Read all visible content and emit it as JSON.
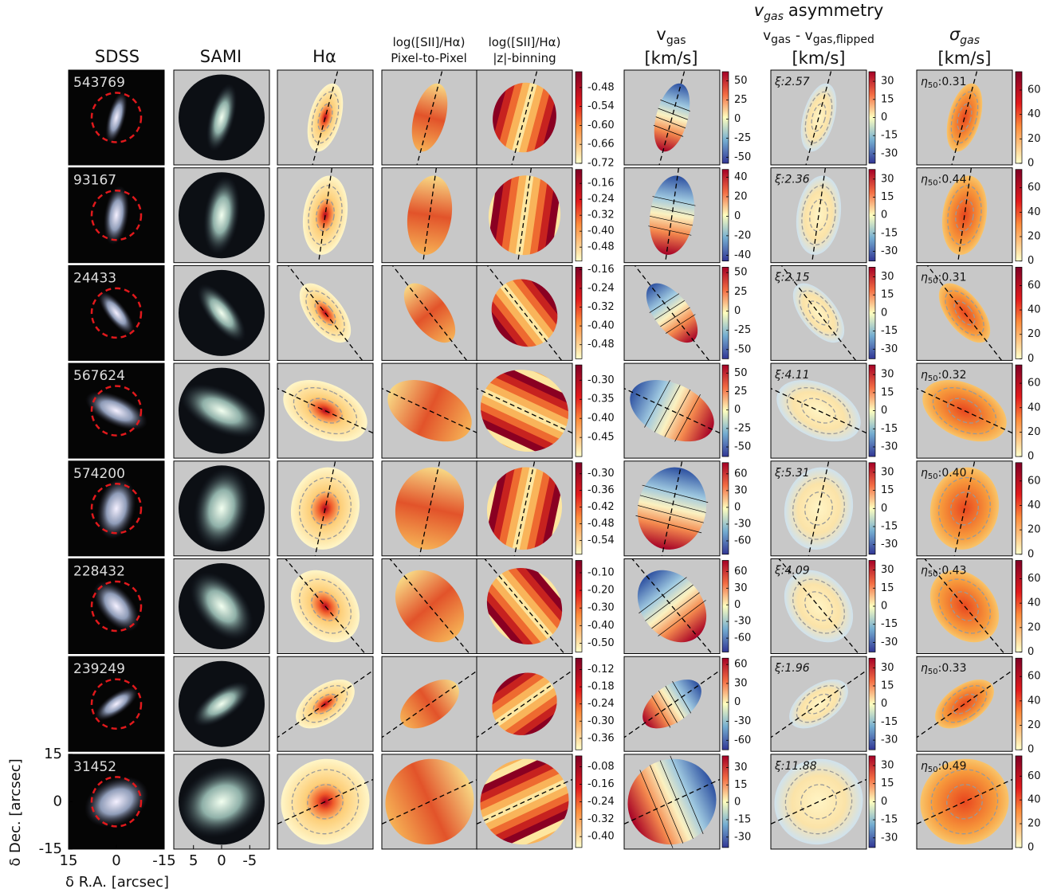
{
  "headers": {
    "sdss": "SDSS",
    "sami": "SAMI",
    "halpha": "Hα",
    "sii_pixel": [
      "log([SII]/Hα)",
      "Pixel-to-Pixel"
    ],
    "sii_binning": [
      "log([SII]/Hα)",
      "|z|-binning"
    ],
    "vgas": {
      "symbol": "v",
      "subscript": "gas",
      "unit": "[km/s]"
    },
    "asymmetry": {
      "symbol": "v",
      "subscript": "gas",
      "title": "asymmetry",
      "formula": [
        "v",
        "gas",
        "-",
        "v",
        "gas,flipped"
      ],
      "unit": "[km/s]"
    },
    "sigma": {
      "symbol": "σ",
      "subscript": "gas",
      "unit": "[km/s]"
    }
  },
  "rows": [
    {
      "id": "543769",
      "sii_ticks": [
        -0.48,
        -0.54,
        {
          "value": -0.6,
          "label": "-0.60"
        },
        -0.66,
        -0.72
      ],
      "sii_lim": [
        -0.72,
        -0.43
      ],
      "vgas_ticks": [
        50,
        25,
        0,
        -25,
        -50
      ],
      "vgas_lim": [
        -58,
        62
      ],
      "asym_ticks": [
        30,
        15,
        0,
        -15,
        -30
      ],
      "asym_lim": [
        -38,
        38
      ],
      "sigma_ticks": [
        60,
        40,
        20,
        0
      ],
      "sigma_lim": [
        0,
        75
      ],
      "xi": "ξ:2.57",
      "eta": [
        "η",
        "50",
        ":0.31"
      ]
    },
    {
      "id": "93167",
      "sii_ticks": [
        -0.16,
        -0.24,
        -0.32,
        {
          "value": -0.4,
          "label": "-0.40"
        },
        -0.48
      ],
      "sii_lim": [
        -0.55,
        -0.09
      ],
      "vgas_ticks": [
        40,
        20,
        0,
        -20,
        -40
      ],
      "vgas_lim": [
        -46,
        48
      ],
      "asym_ticks": [
        30,
        15,
        0,
        -15,
        -30
      ],
      "asym_lim": [
        -38,
        38
      ],
      "sigma_ticks": [
        60,
        40,
        20,
        0
      ],
      "sigma_lim": [
        0,
        75
      ],
      "xi": "ξ:2.36",
      "eta": [
        "η",
        "50",
        ":0.44"
      ]
    },
    {
      "id": "24433",
      "sii_ticks": [
        -0.16,
        -0.24,
        -0.32,
        {
          "value": -0.4,
          "label": "-0.40"
        },
        -0.48
      ],
      "sii_lim": [
        -0.54,
        -0.15
      ],
      "vgas_ticks": [
        50,
        25,
        0,
        -25,
        -50
      ],
      "vgas_lim": [
        -62,
        57
      ],
      "asym_ticks": [
        30,
        15,
        0,
        -15,
        -30
      ],
      "asym_lim": [
        -38,
        38
      ],
      "sigma_ticks": [
        60,
        40,
        20,
        0
      ],
      "sigma_lim": [
        0,
        75
      ],
      "xi": "ξ:2.15",
      "eta": [
        "η",
        "50",
        ":0.31"
      ]
    },
    {
      "id": "567624",
      "sii_ticks": [
        {
          "value": -0.3,
          "label": "-0.30"
        },
        -0.35,
        {
          "value": -0.4,
          "label": "-0.40"
        },
        -0.45
      ],
      "sii_lim": [
        -0.5,
        -0.26
      ],
      "vgas_ticks": [
        50,
        25,
        0,
        -25,
        -50
      ],
      "vgas_lim": [
        -63,
        61
      ],
      "asym_ticks": [
        30,
        15,
        0,
        -15,
        -30
      ],
      "asym_lim": [
        -38,
        38
      ],
      "sigma_ticks": [
        60,
        40,
        20,
        0
      ],
      "sigma_lim": [
        0,
        75
      ],
      "xi": "ξ:4.11",
      "eta": [
        "η",
        "50",
        ":0.32"
      ]
    },
    {
      "id": "574200",
      "sii_ticks": [
        {
          "value": -0.3,
          "label": "-0.30"
        },
        -0.36,
        -0.42,
        -0.48,
        -0.54
      ],
      "sii_lim": [
        -0.59,
        -0.26
      ],
      "vgas_ticks": [
        60,
        30,
        0,
        -30,
        -60
      ],
      "vgas_lim": [
        -84,
        80
      ],
      "asym_ticks": [
        30,
        15,
        0,
        -15,
        -30
      ],
      "asym_lim": [
        -38,
        38
      ],
      "sigma_ticks": [
        60,
        40,
        20,
        0
      ],
      "sigma_lim": [
        0,
        75
      ],
      "xi": "ξ:5.31",
      "eta": [
        "η",
        "50",
        ":0.40"
      ]
    },
    {
      "id": "228432",
      "sii_ticks": [
        {
          "value": -0.1,
          "label": "-0.10"
        },
        {
          "value": -0.2,
          "label": "-0.20"
        },
        {
          "value": -0.3,
          "label": "-0.30"
        },
        {
          "value": -0.4,
          "label": "-0.40"
        },
        {
          "value": -0.5,
          "label": "-0.50"
        }
      ],
      "sii_lim": [
        -0.55,
        -0.03
      ],
      "vgas_ticks": [
        60,
        30,
        0,
        -30,
        -60
      ],
      "vgas_lim": [
        -85,
        80
      ],
      "asym_ticks": [
        30,
        15,
        0,
        -15,
        -30
      ],
      "asym_lim": [
        -38,
        38
      ],
      "sigma_ticks": [
        60,
        40,
        20,
        0
      ],
      "sigma_lim": [
        0,
        75
      ],
      "xi": "ξ:4.09",
      "eta": [
        "η",
        "50",
        ":0.43"
      ]
    },
    {
      "id": "239249",
      "sii_ticks": [
        -0.12,
        -0.18,
        -0.24,
        {
          "value": -0.3,
          "label": "-0.30"
        },
        -0.36
      ],
      "sii_lim": [
        -0.4,
        -0.08
      ],
      "vgas_ticks": [
        60,
        30,
        0,
        -30,
        -60
      ],
      "vgas_lim": [
        -75,
        70
      ],
      "asym_ticks": [
        30,
        15,
        0,
        -15,
        -30
      ],
      "asym_lim": [
        -38,
        38
      ],
      "sigma_ticks": [
        60,
        40,
        20,
        0
      ],
      "sigma_lim": [
        0,
        75
      ],
      "xi": "ξ:1.96",
      "eta": [
        "η",
        "50",
        ":0.33"
      ]
    },
    {
      "id": "31452",
      "sii_ticks": [
        -0.08,
        -0.16,
        -0.24,
        -0.32,
        {
          "value": -0.4,
          "label": "-0.40"
        }
      ],
      "sii_lim": [
        -0.45,
        -0.03
      ],
      "vgas_ticks": [
        30,
        15,
        0,
        -15,
        -30
      ],
      "vgas_lim": [
        -39,
        40
      ],
      "asym_ticks": [
        30,
        15,
        0,
        -15,
        -30
      ],
      "asym_lim": [
        -38,
        38
      ],
      "sigma_ticks": [
        60,
        40,
        20,
        0
      ],
      "sigma_lim": [
        0,
        77
      ],
      "xi": "ξ:11.88",
      "eta": [
        "η",
        "50",
        ":0.49"
      ]
    }
  ],
  "axes": {
    "ylabel": "δ Dec. [arcsec]",
    "xlabel": "δ R.A. [arcsec]",
    "sdss_ticks": [
      15,
      0,
      -15
    ],
    "sdss_lim": [
      15,
      -15
    ],
    "sami_ticks": [
      5,
      0,
      -5
    ],
    "sami_lim": [
      8.5,
      -8.5
    ]
  }
}
